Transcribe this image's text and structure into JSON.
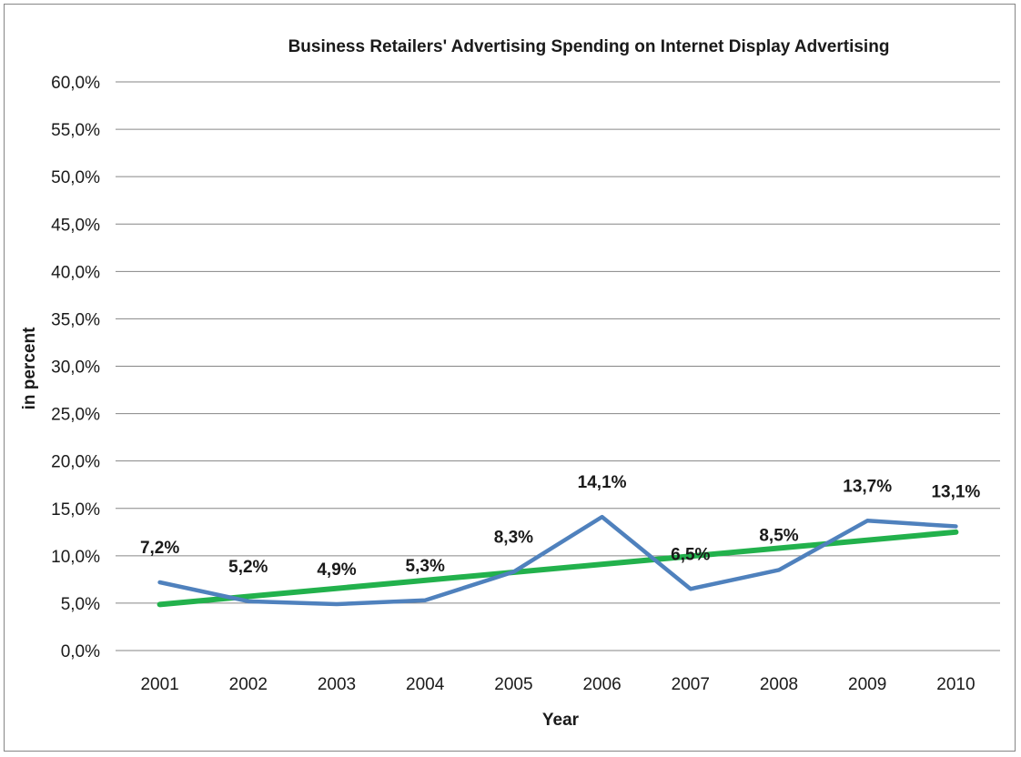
{
  "chart_data": {
    "type": "line",
    "title": "Business Retailers' Advertising Spending on Internet Display Advertising",
    "xlabel": "Year",
    "ylabel": "in percent",
    "categories": [
      "2001",
      "2002",
      "2003",
      "2004",
      "2005",
      "2006",
      "2007",
      "2008",
      "2009",
      "2010"
    ],
    "series": [
      {
        "values": [
          7.2,
          5.2,
          4.9,
          5.3,
          8.3,
          14.1,
          6.5,
          8.5,
          13.7,
          13.1
        ],
        "data_labels": [
          "7,2%",
          "5,2%",
          "4,9%",
          "5,3%",
          "8,3%",
          "14,1%",
          "6,5%",
          "8,5%",
          "13,7%",
          "13,1%"
        ],
        "color": "#4f81bd"
      }
    ],
    "trendline": {
      "type": "linear",
      "color": "#22b14c"
    },
    "ylim": [
      0,
      60
    ],
    "yticks": [
      0,
      5,
      10,
      15,
      20,
      25,
      30,
      35,
      40,
      45,
      50,
      55,
      60
    ],
    "ytick_labels": [
      "0,0%",
      "5,0%",
      "10,0%",
      "15,0%",
      "20,0%",
      "25,0%",
      "30,0%",
      "35,0%",
      "40,0%",
      "45,0%",
      "50,0%",
      "55,0%",
      "60,0%"
    ],
    "grid": true,
    "legend": "none"
  }
}
